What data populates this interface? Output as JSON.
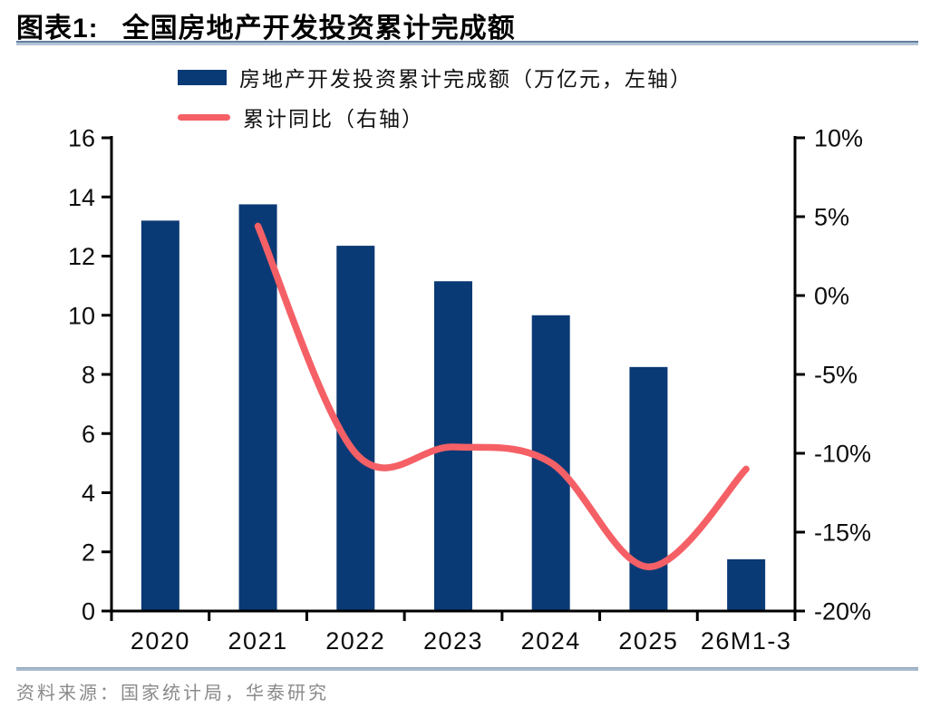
{
  "header": {
    "figure_label": "图表1:",
    "title": "全国房地产开发投资累计完成额"
  },
  "source": {
    "prefix": "资料来源：",
    "text": "国家统计局，华泰研究"
  },
  "colors": {
    "bar_navy": "#0a3a75",
    "line_coral": "#f56066",
    "axis_black": "#000000",
    "divider_blue_gray": "#a9bccd",
    "source_gray": "#8a8a8a"
  },
  "chart_data": {
    "type": "bar",
    "subtype": "bar+line dual axis",
    "grid": false,
    "legend_position": "top",
    "categories": [
      "2020",
      "2021",
      "2022",
      "2023",
      "2024",
      "2025",
      "26M1-3"
    ],
    "series": [
      {
        "name": "房地产开发投资累计完成额（万亿元，左轴）",
        "type": "bar",
        "axis": "left",
        "color": "#0a3a75",
        "values": [
          13.2,
          13.75,
          12.35,
          11.15,
          10.0,
          8.25,
          1.75
        ]
      },
      {
        "name": "累计同比（右轴）",
        "type": "line",
        "axis": "right",
        "color": "#f56066",
        "values": [
          null,
          4.4,
          -10.0,
          -9.6,
          -10.6,
          -17.2,
          -11.0
        ]
      }
    ],
    "left_axis": {
      "min": 0,
      "max": 16,
      "step": 2,
      "ticks": [
        "0",
        "2",
        "4",
        "6",
        "8",
        "10",
        "12",
        "14",
        "16"
      ]
    },
    "right_axis": {
      "min": -20,
      "max": 10,
      "step": 5,
      "ticks": [
        "10%",
        "5%",
        "0%",
        "-5%",
        "-10%",
        "-15%",
        "-20%"
      ]
    }
  }
}
